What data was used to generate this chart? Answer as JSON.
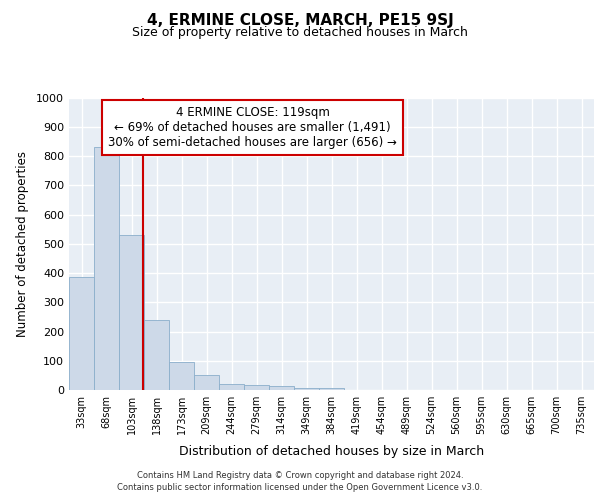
{
  "title": "4, ERMINE CLOSE, MARCH, PE15 9SJ",
  "subtitle": "Size of property relative to detached houses in March",
  "xlabel": "Distribution of detached houses by size in March",
  "ylabel": "Number of detached properties",
  "bin_labels": [
    "33sqm",
    "68sqm",
    "103sqm",
    "138sqm",
    "173sqm",
    "209sqm",
    "244sqm",
    "279sqm",
    "314sqm",
    "349sqm",
    "384sqm",
    "419sqm",
    "454sqm",
    "489sqm",
    "524sqm",
    "560sqm",
    "595sqm",
    "630sqm",
    "665sqm",
    "700sqm",
    "735sqm"
  ],
  "bar_values": [
    385,
    830,
    530,
    240,
    97,
    52,
    20,
    17,
    12,
    8,
    7,
    0,
    0,
    0,
    0,
    0,
    0,
    0,
    0,
    0,
    0
  ],
  "bar_color": "#cdd9e8",
  "bar_edge_color": "#8aaecb",
  "bar_edge_width": 0.6,
  "annotation_line1": "4 ERMINE CLOSE: 119sqm",
  "annotation_line2": "← 69% of detached houses are smaller (1,491)",
  "annotation_line3": "30% of semi-detached houses are larger (656) →",
  "annotation_box_color": "#ffffff",
  "annotation_box_edge_color": "#cc0000",
  "ylim": [
    0,
    1000
  ],
  "yticks": [
    0,
    100,
    200,
    300,
    400,
    500,
    600,
    700,
    800,
    900,
    1000
  ],
  "bg_color": "#e8eef5",
  "grid_color": "#ffffff",
  "footer_line1": "Contains HM Land Registry data © Crown copyright and database right 2024.",
  "footer_line2": "Contains public sector information licensed under the Open Government Licence v3.0."
}
